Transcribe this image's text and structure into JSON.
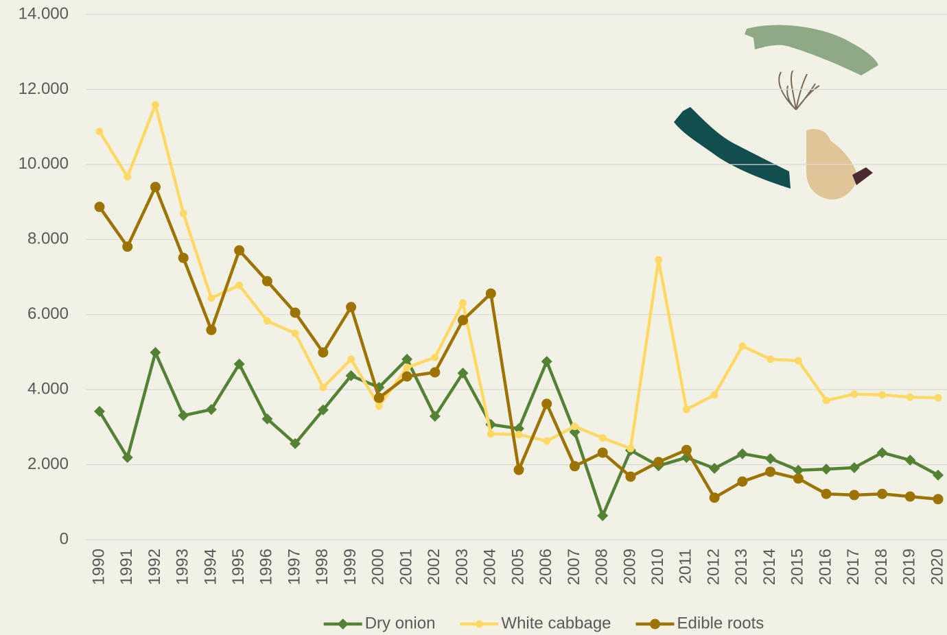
{
  "chart_data": {
    "type": "line",
    "categories": [
      "1990",
      "1991",
      "1992",
      "1993",
      "1994",
      "1995",
      "1996",
      "1997",
      "1998",
      "1999",
      "2000",
      "2001",
      "2002",
      "2003",
      "2004",
      "2005",
      "2006",
      "2007",
      "2008",
      "2009",
      "2010",
      "2011",
      "2012",
      "2013",
      "2014",
      "2015",
      "2016",
      "2017",
      "2018",
      "2019",
      "2020"
    ],
    "series": [
      {
        "name": "Dry onion",
        "color": "#548235",
        "marker": "diamond",
        "values": [
          3420,
          2190,
          4990,
          3310,
          3470,
          4680,
          3220,
          2560,
          3460,
          4370,
          4060,
          4810,
          3290,
          4440,
          3070,
          2960,
          4750,
          2870,
          640,
          2380,
          1970,
          2190,
          1900,
          2290,
          2160,
          1850,
          1880,
          1920,
          2320,
          2120,
          1720
        ]
      },
      {
        "name": "White cabbage",
        "color": "#ffd966",
        "marker": "circle-small",
        "values": [
          10880,
          9670,
          11590,
          8700,
          6440,
          6780,
          5830,
          5500,
          4060,
          4810,
          3560,
          4590,
          4860,
          6310,
          2820,
          2800,
          2630,
          3020,
          2710,
          2430,
          7460,
          3470,
          3860,
          5160,
          4810,
          4770,
          3710,
          3880,
          3860,
          3800,
          3780
        ]
      },
      {
        "name": "Edible roots",
        "color": "#9c7300",
        "marker": "circle",
        "values": [
          8870,
          7810,
          9400,
          7510,
          5590,
          7710,
          6890,
          6050,
          4990,
          6200,
          3780,
          4350,
          4460,
          5850,
          6560,
          1860,
          3620,
          1960,
          2320,
          1680,
          2070,
          2390,
          1120,
          1550,
          1810,
          1630,
          1220,
          1190,
          1220,
          1150,
          1080
        ]
      }
    ],
    "ylim": [
      0,
      14000
    ],
    "yticks": [
      0,
      {
        "value": 2000,
        "label": "2.000"
      },
      {
        "value": 4000,
        "label": "4.000"
      },
      {
        "value": 6000,
        "label": "6.000"
      },
      {
        "value": 8000,
        "label": "8.000"
      },
      {
        "value": 10000,
        "label": "10.000"
      },
      {
        "value": 12000,
        "label": "12.000"
      },
      {
        "value": 14000,
        "label": "14.000"
      }
    ],
    "grid": true,
    "legend": "bottom"
  }
}
